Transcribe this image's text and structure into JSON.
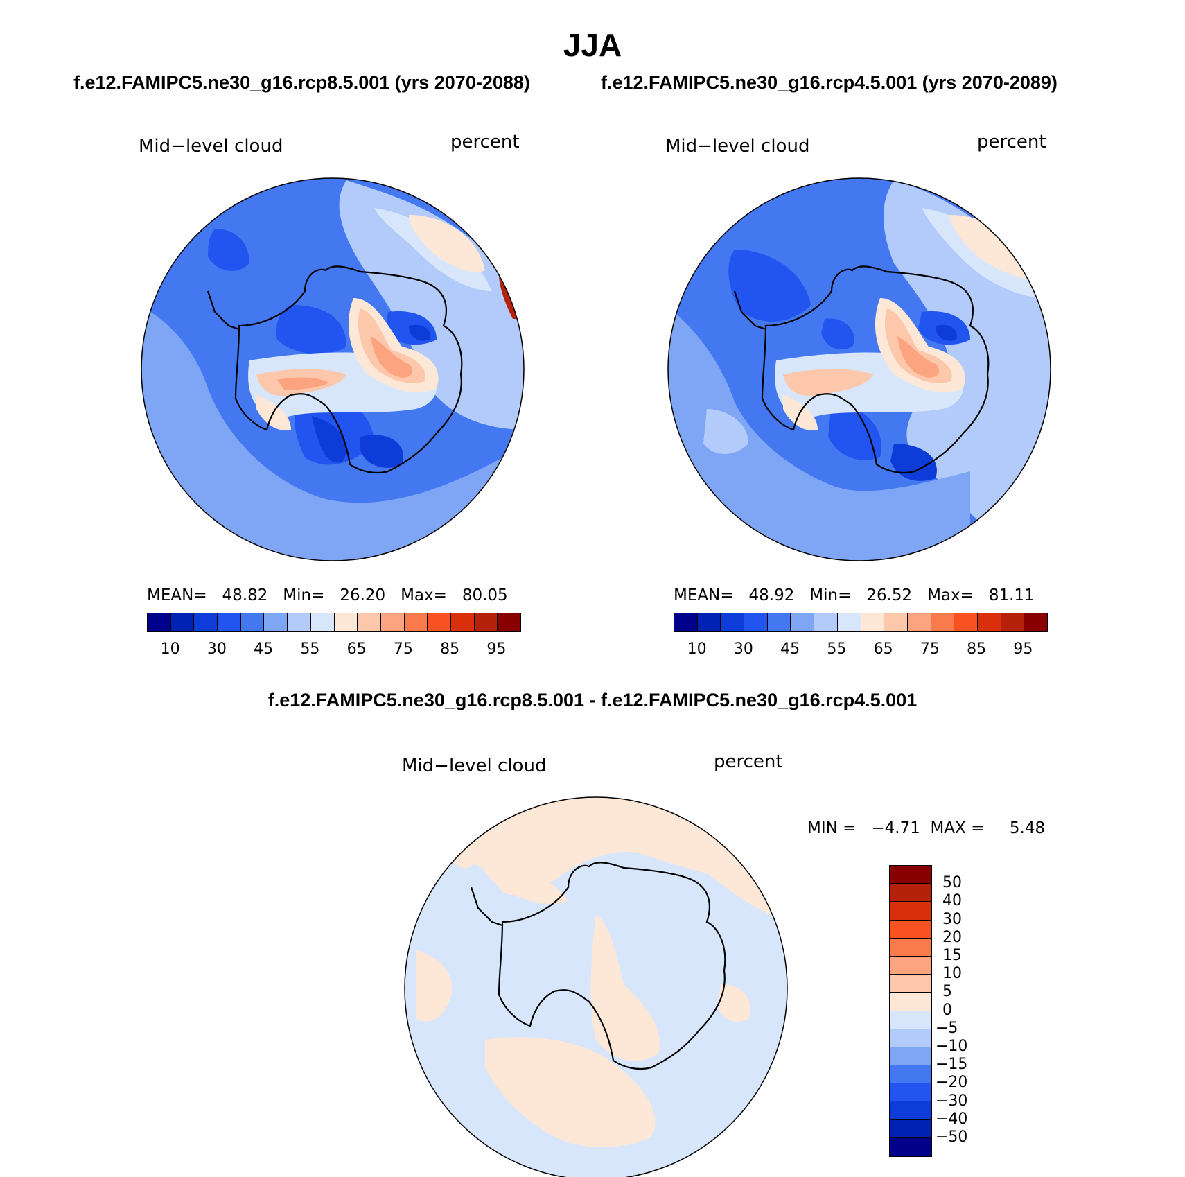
{
  "title": "JJA",
  "case_titles": [
    "f.e12.FAMIPC5.ne30_g16.rcp8.5.001 (yrs 2070-2088)",
    "f.e12.FAMIPC5.ne30_g16.rcp4.5.001 (yrs 2070-2089)"
  ],
  "diff_title": "f.e12.FAMIPC5.ne30_g16.rcp8.5.001 - f.e12.FAMIPC5.ne30_g16.rcp4.5.001",
  "panels": [
    {
      "variable": "Mid−level cloud",
      "units": "percent",
      "stats": "MEAN=   48.82   Min=   26.20   Max=   80.05"
    },
    {
      "variable": "Mid−level cloud",
      "units": "percent",
      "stats": "MEAN=   48.92   Min=   26.52   Max=   81.11"
    },
    {
      "variable": "Mid−level cloud",
      "units": "percent",
      "stats": "MIN =   −4.71  MAX =     5.48"
    }
  ],
  "colorbar_main": {
    "colors": [
      "#00008b",
      "#0022b4",
      "#0d3cd9",
      "#2255f0",
      "#4478f0",
      "#7fa6f5",
      "#b3cbfa",
      "#d7e6fb",
      "#fde7d6",
      "#fcc7aa",
      "#fba47f",
      "#f97a4b",
      "#f7521f",
      "#d9300b",
      "#b5210a",
      "#880000"
    ],
    "labels": [
      "10",
      "30",
      "45",
      "55",
      "65",
      "75",
      "85",
      "95"
    ]
  },
  "colorbar_diff": {
    "colors": [
      "#880000",
      "#b5210a",
      "#d9300b",
      "#f7521f",
      "#f97a4b",
      "#fba47f",
      "#fcc7aa",
      "#fde7d6",
      "#d7e6fb",
      "#b3cbfa",
      "#7fa6f5",
      "#4478f0",
      "#2255f0",
      "#0d3cd9",
      "#0022b4",
      "#00008b"
    ],
    "labels": [
      "50",
      "40",
      "30",
      "20",
      "15",
      "10",
      "5",
      "0",
      "−5",
      "−10",
      "−15",
      "−20",
      "−30",
      "−40",
      "−50"
    ]
  }
}
